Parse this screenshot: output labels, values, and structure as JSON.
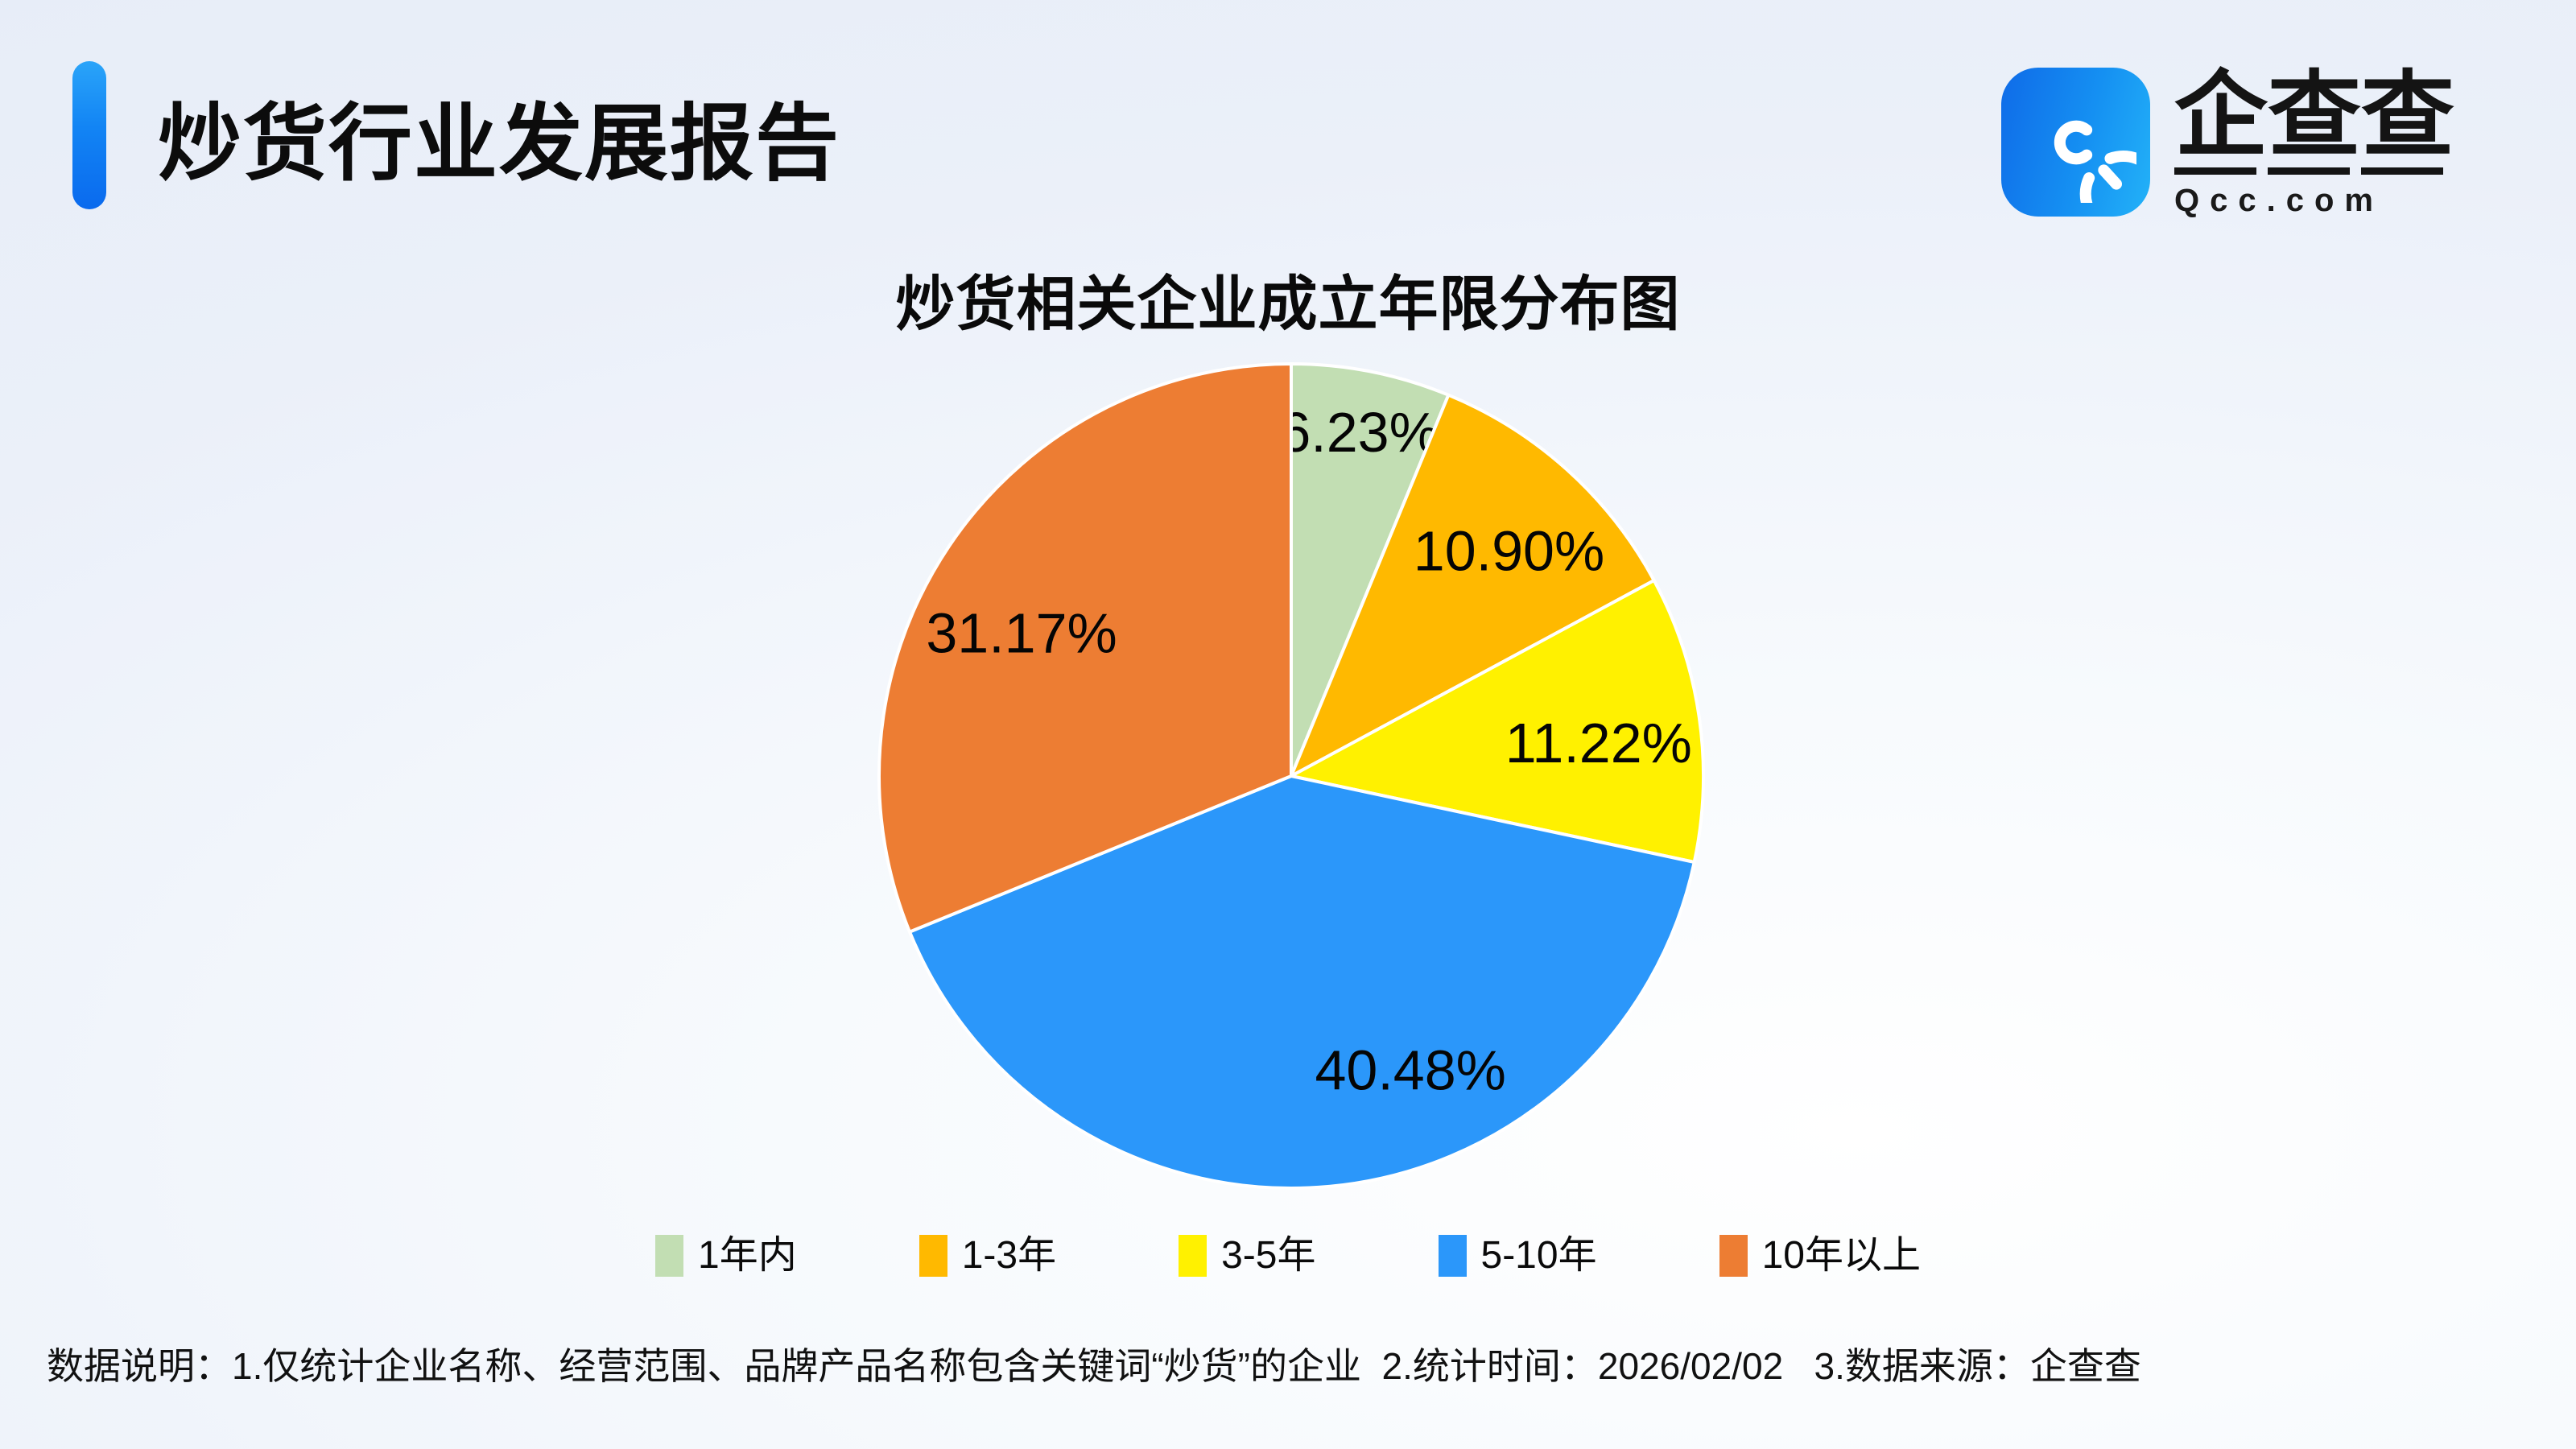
{
  "page": {
    "report_title": "炒货行业发展报告",
    "footnote": "数据说明：1.仅统计企业名称、经营范围、品牌产品名称包含关键词“炒货”的企业  2.统计时间：2026/02/02   3.数据来源：企查查"
  },
  "logo": {
    "company": "企查查",
    "domain": "Qcc.com"
  },
  "chart_data": {
    "type": "pie",
    "title": "炒货相关企业成立年限分布图",
    "categories": [
      "1年内",
      "1-3年",
      "3-5年",
      "5-10年",
      "10年以上"
    ],
    "values": [
      6.23,
      10.9,
      11.22,
      40.48,
      31.17
    ],
    "labels": [
      "6.23%",
      "10.90%",
      "11.22%",
      "40.48%",
      "31.17%"
    ],
    "colors": [
      "#C2DEB3",
      "#FFB900",
      "#FFF100",
      "#2B97FA",
      "#ED7D33"
    ],
    "start_angle": "12-oclock",
    "direction": "clockwise",
    "label_position": "inside",
    "legend_position": "bottom",
    "accent_color": "#1284F4",
    "background_color": "#EDF1FA"
  }
}
